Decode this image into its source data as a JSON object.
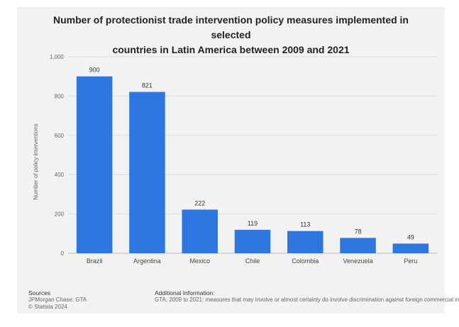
{
  "chart_data": {
    "type": "bar",
    "title": "Number of protectionist trade intervention policy measures implemented in selected countries in Latin America between 2009 and 2021",
    "title_lines": [
      "Number of protectionist trade intervention policy measures implemented in selected",
      "countries in Latin America between 2009 and 2021"
    ],
    "categories": [
      "Brazil",
      "Argentina",
      "Mexico",
      "Chile",
      "Colombia",
      "Venezuela",
      "Peru"
    ],
    "values": [
      900,
      821,
      222,
      119,
      113,
      78,
      49
    ],
    "value_labels": [
      "900",
      "821",
      "222",
      "119",
      "113",
      "78",
      "49"
    ],
    "xlabel": "",
    "ylabel": "Number of policy interventions",
    "ylim": [
      0,
      1000
    ],
    "yticks": [
      0,
      200,
      400,
      600,
      800,
      1000
    ],
    "ytick_labels": [
      "0",
      "200",
      "400",
      "600",
      "800",
      "1,000"
    ],
    "grid": true,
    "bar_color": "#2f77e0"
  },
  "footer": {
    "sources_heading": "Sources",
    "sources_line1": "JPMorgan Chase; GTA",
    "sources_line2": "© Statista 2024",
    "additional_heading": "Additional Information:",
    "additional_text": "GTA; 2009 to 2021; measures that may involve or almost certainly do involve discrimination against foreign commercial in"
  }
}
